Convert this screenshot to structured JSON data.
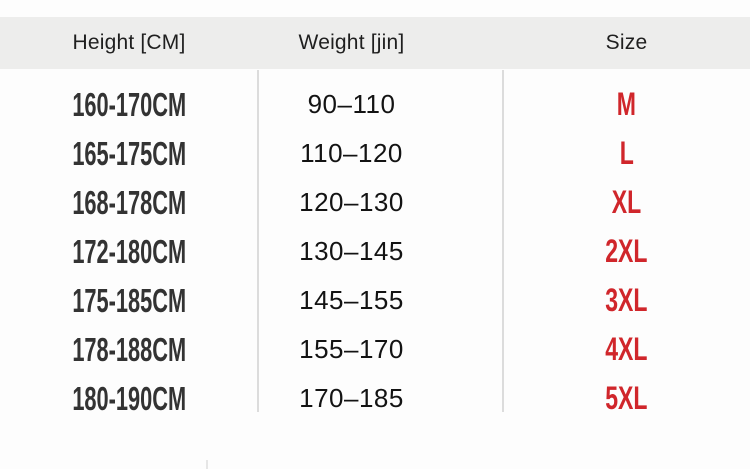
{
  "table": {
    "headers": {
      "height": "Height [CM]",
      "weight": "Weight [jin]",
      "size": "Size"
    },
    "rows": [
      {
        "height": "160-170CM",
        "weight": "90–110",
        "size": "M"
      },
      {
        "height": "165-175CM",
        "weight": "110–120",
        "size": "L"
      },
      {
        "height": "168-178CM",
        "weight": "120–130",
        "size": "XL"
      },
      {
        "height": "172-180CM",
        "weight": "130–145",
        "size": "2XL"
      },
      {
        "height": "175-185CM",
        "weight": "145–155",
        "size": "3XL"
      },
      {
        "height": "178-188CM",
        "weight": "155–170",
        "size": "4XL"
      },
      {
        "height": "180-190CM",
        "weight": "170–185",
        "size": "5XL"
      }
    ],
    "colors": {
      "header_bg": "#ededec",
      "height_text": "#333333",
      "weight_text": "#131313",
      "size_red": "#d0262b",
      "divider": "#dcdcdc"
    }
  },
  "chart_data": {
    "type": "table",
    "title": "",
    "columns": [
      "Height [CM]",
      "Weight [jin]",
      "Size"
    ],
    "rows": [
      [
        "160-170CM",
        "90–110",
        "M"
      ],
      [
        "165-175CM",
        "110–120",
        "L"
      ],
      [
        "168-178CM",
        "120–130",
        "XL"
      ],
      [
        "172-180CM",
        "130–145",
        "2XL"
      ],
      [
        "175-185CM",
        "145–155",
        "3XL"
      ],
      [
        "178-188CM",
        "155–170",
        "4XL"
      ],
      [
        "180-190CM",
        "170–185",
        "5XL"
      ]
    ]
  }
}
